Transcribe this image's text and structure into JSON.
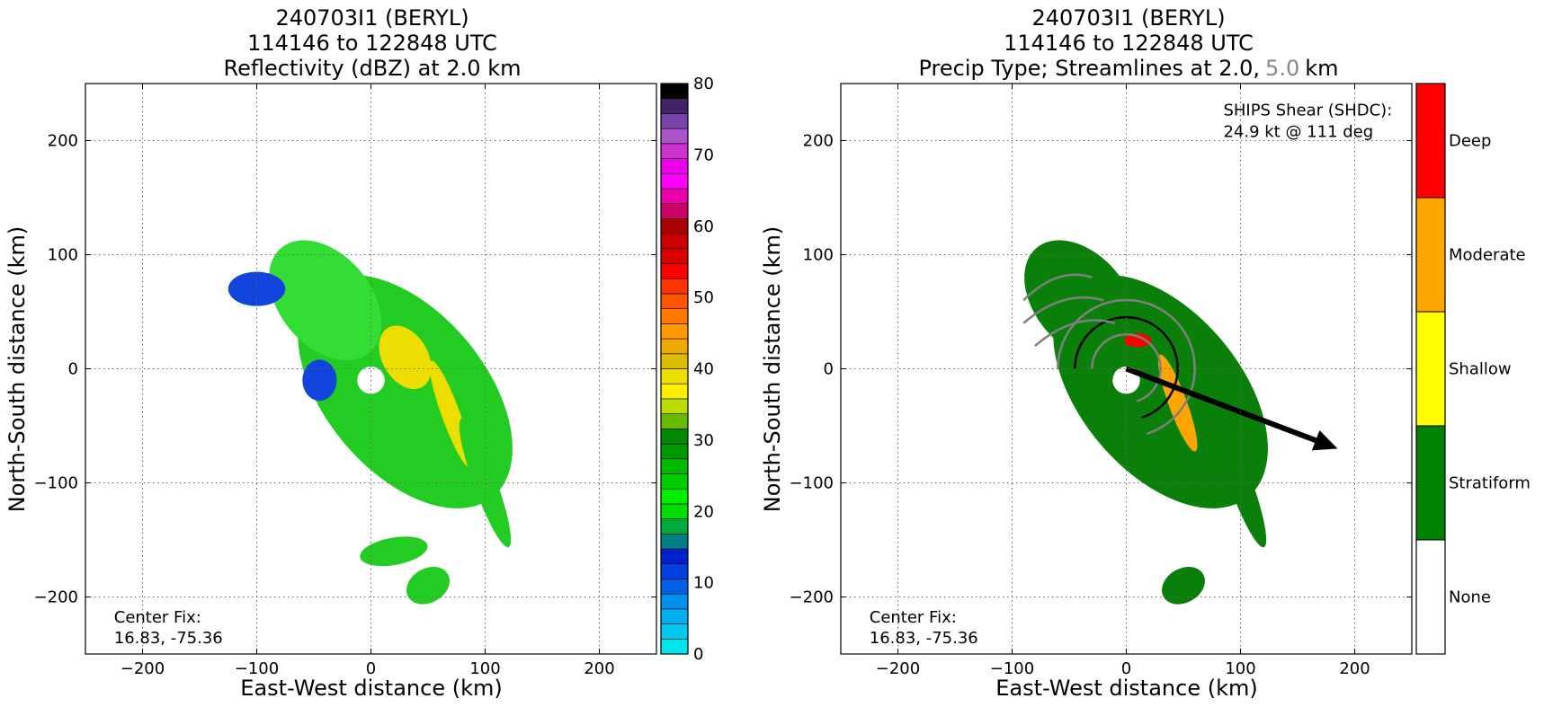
{
  "chart_data": [
    {
      "type": "heatmap",
      "title": "240703I1 (BERYL)",
      "subtitle": "114146 to 122848 UTC",
      "subtitle2": "Reflectivity (dBZ) at 2.0 km",
      "xlabel": "East-West distance (km)",
      "ylabel": "North-South distance (km)",
      "xlim": [
        -250,
        250
      ],
      "ylim": [
        -250,
        250
      ],
      "xticks": [
        -200,
        -100,
        0,
        100,
        200
      ],
      "yticks": [
        -200,
        -100,
        0,
        100,
        200
      ],
      "grid": true,
      "annotation": {
        "line1": "Center Fix:",
        "line2": "16.83, -75.36"
      },
      "colorbar": {
        "range": [
          0,
          80
        ],
        "step": 2.5,
        "tick_values": [
          0,
          10,
          20,
          30,
          40,
          50,
          60,
          70,
          80
        ],
        "tick_labels": [
          "0",
          "10",
          "20",
          "30",
          "40",
          "50",
          "60",
          "70",
          "80"
        ],
        "colors": [
          "#00e5ee",
          "#00c8f0",
          "#00b0f0",
          "#0090f0",
          "#0060e6",
          "#0040e0",
          "#0020d0",
          "#008080",
          "#00aa3a",
          "#00dd00",
          "#00ee00",
          "#00cc00",
          "#00bb00",
          "#009900",
          "#008800",
          "#66bb00",
          "#bbdd00",
          "#ffee00",
          "#eedd00",
          "#ddbb00",
          "#eeaa00",
          "#ff9900",
          "#ff7700",
          "#ff5500",
          "#ff3300",
          "#ff0000",
          "#dd0000",
          "#cc0000",
          "#aa0000",
          "#cc0066",
          "#ee00aa",
          "#ff00ff",
          "#ee00ee",
          "#cc33cc",
          "#aa55cc",
          "#7744aa",
          "#442266",
          "#000000"
        ]
      },
      "regions": [
        {
          "kind": "blob",
          "x": 30,
          "y": -20,
          "rx": 70,
          "ry": 120,
          "rot": -40,
          "color": "#22cc22"
        },
        {
          "kind": "blob",
          "x": -40,
          "y": 60,
          "rx": 40,
          "ry": 60,
          "rot": -40,
          "color": "#33dd33"
        },
        {
          "kind": "blob",
          "x": -100,
          "y": 70,
          "rx": 25,
          "ry": 15,
          "rot": 0,
          "color": "#1144dd"
        },
        {
          "kind": "blob",
          "x": 30,
          "y": 10,
          "rx": 20,
          "ry": 30,
          "rot": -30,
          "color": "#eedd00"
        },
        {
          "kind": "blob",
          "x": 70,
          "y": -40,
          "rx": 8,
          "ry": 50,
          "rot": -20,
          "color": "#eedd00"
        },
        {
          "kind": "blob",
          "x": -45,
          "y": -10,
          "rx": 15,
          "ry": 18,
          "rot": 0,
          "color": "#1144dd"
        },
        {
          "kind": "blob",
          "x": 100,
          "y": -100,
          "rx": 10,
          "ry": 60,
          "rot": -20,
          "color": "#22cc22"
        },
        {
          "kind": "blob",
          "x": 20,
          "y": -160,
          "rx": 30,
          "ry": 12,
          "rot": -10,
          "color": "#22cc22"
        },
        {
          "kind": "blob",
          "x": 50,
          "y": -190,
          "rx": 20,
          "ry": 15,
          "rot": -30,
          "color": "#22cc22"
        },
        {
          "kind": "blob",
          "x": 0,
          "y": -10,
          "rx": 12,
          "ry": 12,
          "rot": 0,
          "color": "#ffffff"
        }
      ]
    },
    {
      "type": "heatmap",
      "title": "240703I1 (BERYL)",
      "subtitle": "114146 to 122848 UTC",
      "subtitle2_a": "Precip Type; Streamlines at 2.0,",
      "subtitle2_b": "5.0",
      "subtitle2_c": "km",
      "xlabel": "East-West distance (km)",
      "ylabel": "North-South distance (km)",
      "xlim": [
        -250,
        250
      ],
      "ylim": [
        -250,
        250
      ],
      "xticks": [
        -200,
        -100,
        0,
        100,
        200
      ],
      "yticks": [
        -200,
        -100,
        0,
        100,
        200
      ],
      "grid": true,
      "annotation": {
        "line1": "Center Fix:",
        "line2": "16.83, -75.36"
      },
      "shear": {
        "line1": "SHIPS Shear (SHDC):",
        "line2": "24.9 kt @ 111 deg",
        "from": [
          0,
          0
        ],
        "to": [
          185,
          -70
        ]
      },
      "colorbar": {
        "categories": [
          "None",
          "Stratiform",
          "Shallow",
          "Moderate",
          "Deep"
        ],
        "colors": [
          "#ffffff",
          "#008000",
          "#ffff00",
          "#ffa500",
          "#ff0000"
        ]
      },
      "regions": [
        {
          "kind": "blob",
          "x": 30,
          "y": -20,
          "rx": 70,
          "ry": 120,
          "rot": -40,
          "color": "#0a800a"
        },
        {
          "kind": "blob",
          "x": -40,
          "y": 60,
          "rx": 40,
          "ry": 60,
          "rot": -40,
          "color": "#0a800a"
        },
        {
          "kind": "blob",
          "x": 45,
          "y": -30,
          "rx": 8,
          "ry": 45,
          "rot": -20,
          "color": "#ffa500"
        },
        {
          "kind": "blob",
          "x": 10,
          "y": 25,
          "rx": 12,
          "ry": 6,
          "rot": 0,
          "color": "#ff0000"
        },
        {
          "kind": "blob",
          "x": 100,
          "y": -100,
          "rx": 10,
          "ry": 60,
          "rot": -20,
          "color": "#0a800a"
        },
        {
          "kind": "blob",
          "x": 50,
          "y": -190,
          "rx": 20,
          "ry": 15,
          "rot": -30,
          "color": "#0a800a"
        },
        {
          "kind": "blob",
          "x": 0,
          "y": -10,
          "rx": 12,
          "ry": 12,
          "rot": 0,
          "color": "#ffffff"
        }
      ]
    }
  ]
}
